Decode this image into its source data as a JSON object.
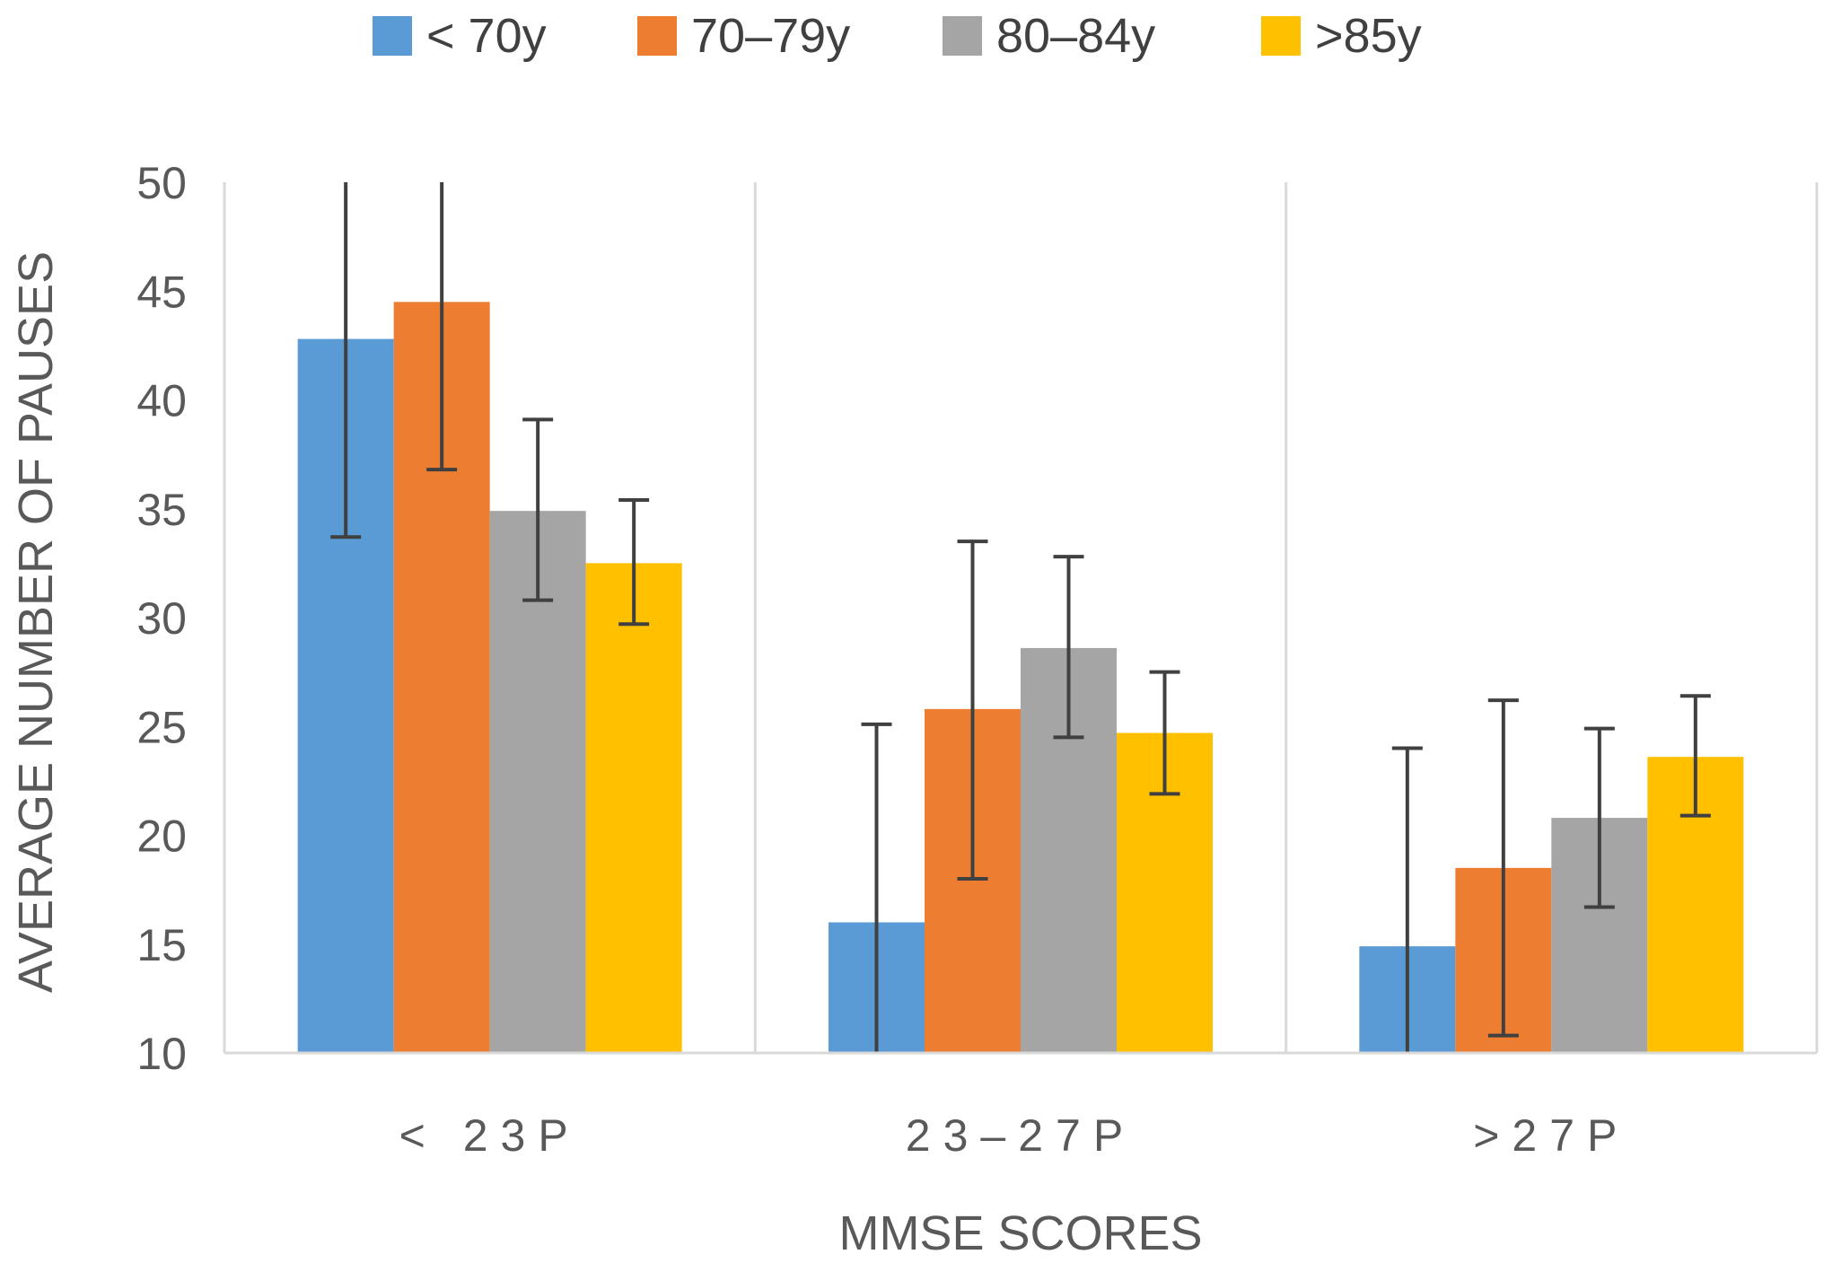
{
  "chart_data": {
    "type": "bar",
    "title": "",
    "xlabel": "MMSE SCORES",
    "ylabel": "AVERAGE NUMBER OF PAUSES",
    "ylim": [
      10,
      50
    ],
    "yticks": [
      10,
      15,
      20,
      25,
      30,
      35,
      40,
      45,
      50
    ],
    "categories": [
      "< 23P",
      "23–27P",
      ">27P"
    ],
    "legend_position": "top-center",
    "grid": "vertical category separators",
    "series": [
      {
        "name": "< 70y",
        "color": "#5B9BD5",
        "values": [
          42.8,
          16.0,
          14.9
        ],
        "error_high": [
          50,
          25.1,
          24.0
        ],
        "error_low": [
          33.7,
          10,
          10
        ]
      },
      {
        "name": "70–79y",
        "color": "#ED7D31",
        "values": [
          44.5,
          25.8,
          18.5
        ],
        "error_high": [
          50,
          33.5,
          26.2
        ],
        "error_low": [
          36.8,
          18.0,
          10.8
        ]
      },
      {
        "name": "80–84y",
        "color": "#A5A5A5",
        "values": [
          34.9,
          28.6,
          20.8
        ],
        "error_high": [
          39.1,
          32.8,
          24.9
        ],
        "error_low": [
          30.8,
          24.5,
          16.7
        ]
      },
      {
        "name": ">85y",
        "color": "#FFC000",
        "values": [
          32.5,
          24.7,
          23.6
        ],
        "error_high": [
          35.4,
          27.5,
          26.4
        ],
        "error_low": [
          29.7,
          21.9,
          20.9
        ]
      }
    ]
  }
}
